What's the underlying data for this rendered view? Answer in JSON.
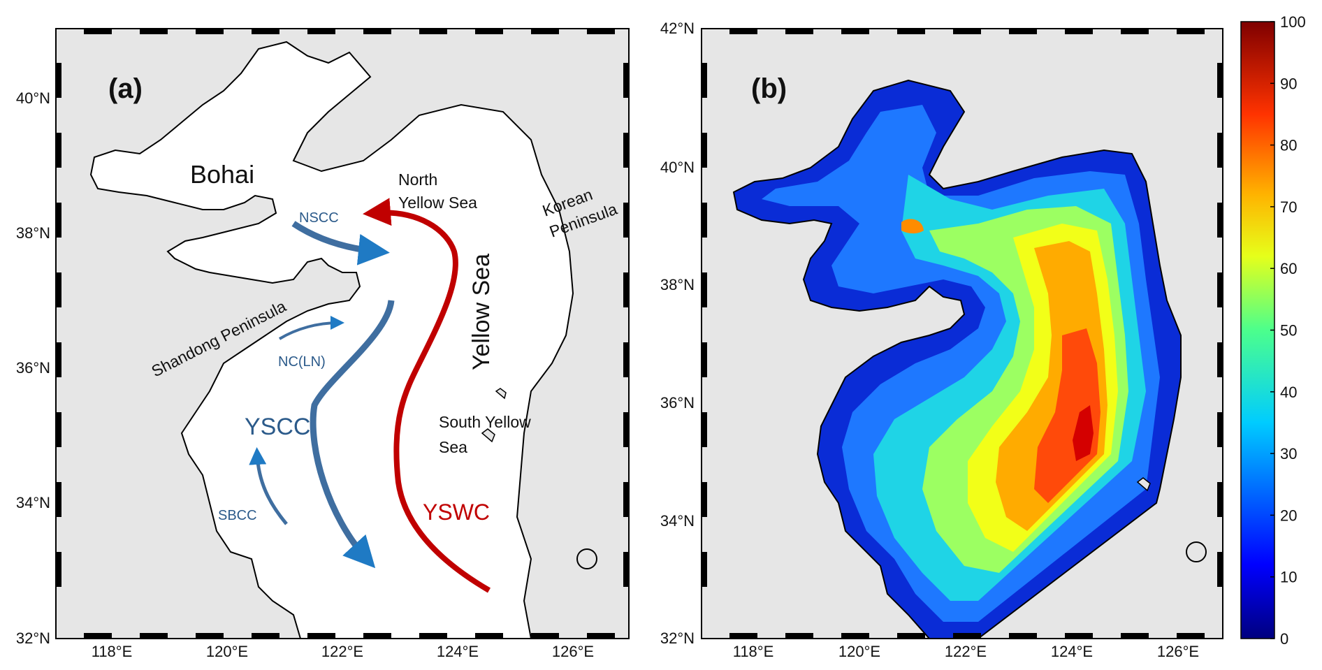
{
  "panel_a": {
    "label": "(a)",
    "lat_ticks": [
      "32°N",
      "34°N",
      "36°N",
      "38°N",
      "40°N"
    ],
    "lon_ticks": [
      "118°E",
      "120°E",
      "122°E",
      "124°E",
      "126°E"
    ],
    "regions": {
      "bohai": "Bohai",
      "north_yellow_sea_1": "North",
      "north_yellow_sea_2": "Yellow Sea",
      "korean_peninsula_1": "Korean",
      "korean_peninsula_2": "Peninsula",
      "yellow_sea": "Yellow Sea",
      "shandong_peninsula": "Shandong Peninsula",
      "south_yellow_sea_1": "South Yellow",
      "south_yellow_sea_2": "Sea"
    },
    "currents": {
      "nscc": "NSCC",
      "nc_ln": "NC(LN)",
      "yscc": "YSCC",
      "sbcc": "SBCC",
      "yswc": "YSWC"
    },
    "colors": {
      "land": "#e6e6e6",
      "sea": "#ffffff",
      "coastal_current": "#3f6ea0",
      "arrow_blue": "#1f7ac4",
      "warm_current": "#c00000"
    }
  },
  "panel_b": {
    "label": "(b)",
    "lat_ticks": [
      "32°N",
      "34°N",
      "36°N",
      "38°N",
      "40°N",
      "42°N"
    ],
    "lon_ticks": [
      "118°E",
      "120°E",
      "122°E",
      "124°E",
      "126°E"
    ],
    "colorbar": {
      "colormap": "jet",
      "min": 0,
      "max": 100,
      "ticks": [
        "0",
        "10",
        "20",
        "30",
        "40",
        "50",
        "60",
        "70",
        "80",
        "90",
        "100"
      ]
    }
  }
}
